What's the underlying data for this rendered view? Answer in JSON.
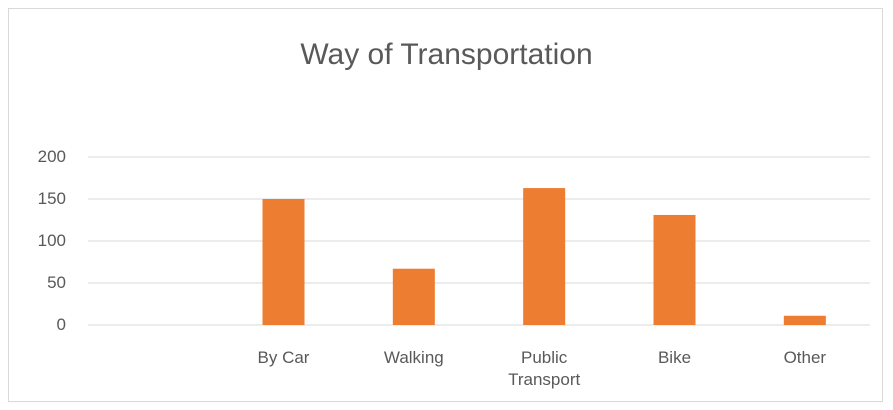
{
  "chart_data": {
    "type": "bar",
    "title": "Way of Transportation",
    "categories": [
      null,
      "By Car",
      "Walking",
      "Public Transport",
      "Bike",
      "Other"
    ],
    "values": [
      null,
      150,
      67,
      163,
      131,
      11
    ],
    "color": "#ed7d31",
    "ylim": [
      0,
      200
    ],
    "yticks": [
      0,
      50,
      100,
      150,
      200
    ],
    "grid": true
  }
}
